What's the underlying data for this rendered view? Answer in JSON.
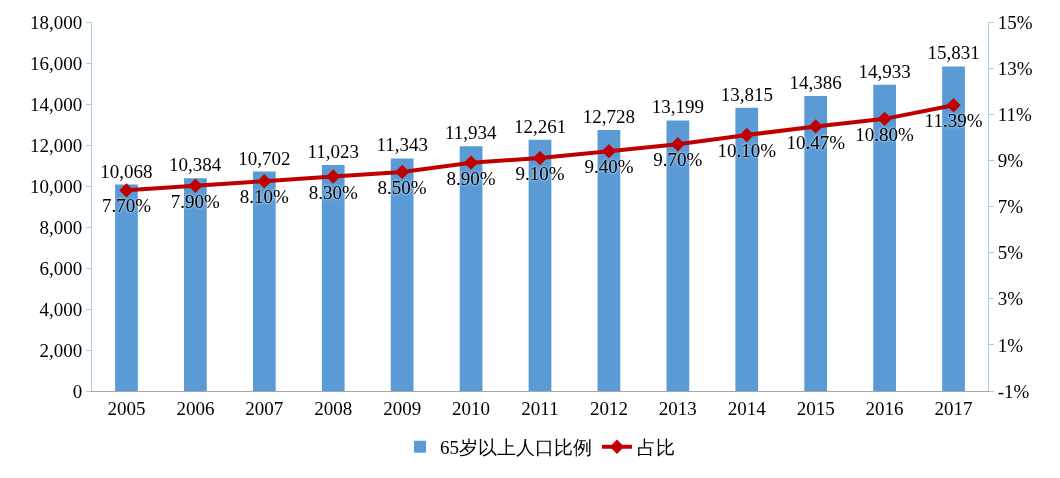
{
  "chart_data": {
    "type": "bar",
    "categories": [
      "2005",
      "2006",
      "2007",
      "2008",
      "2009",
      "2010",
      "2011",
      "2012",
      "2013",
      "2014",
      "2015",
      "2016",
      "2017"
    ],
    "series": [
      {
        "name": "65岁以上人口比例",
        "color": "#5b9bd5",
        "values": [
          10068,
          10384,
          10702,
          11023,
          11343,
          11934,
          12261,
          12728,
          13199,
          13815,
          14386,
          14933,
          15831
        ],
        "value_labels": [
          "10,068",
          "10,384",
          "10,702",
          "11,023",
          "11,343",
          "11,934",
          "12,261",
          "12,728",
          "13,199",
          "13,815",
          "14,386",
          "14,933",
          "15,831"
        ]
      },
      {
        "name": "占比",
        "type": "line",
        "axis": "y2",
        "color": "#c00000",
        "marker": "diamond",
        "line_style": "solid",
        "values": [
          7.7,
          7.9,
          8.1,
          8.3,
          8.5,
          8.9,
          9.1,
          9.4,
          9.7,
          10.1,
          10.47,
          10.8,
          11.39
        ],
        "value_labels": [
          "7.70%",
          "7.90%",
          "8.10%",
          "8.30%",
          "8.50%",
          "8.90%",
          "9.10%",
          "9.40%",
          "9.70%",
          "10.10%",
          "10.47%",
          "10.80%",
          "11.39%"
        ]
      }
    ],
    "ylim": [
      0,
      18000
    ],
    "yticks": [
      0,
      {
        "value": 2000,
        "label": "2,000"
      },
      {
        "value": 4000,
        "label": "4,000"
      },
      {
        "value": 6000,
        "label": "6,000"
      },
      {
        "value": 8000,
        "label": "8,000"
      },
      {
        "value": 10000,
        "label": "10,000"
      },
      {
        "value": 12000,
        "label": "12,000"
      },
      {
        "value": 14000,
        "label": "14,000"
      },
      {
        "value": 16000,
        "label": "16,000"
      },
      {
        "value": 18000,
        "label": "18,000"
      }
    ],
    "y2lim": [
      -1,
      15
    ],
    "y2ticks": [
      {
        "value": -1,
        "label": "-1%"
      },
      {
        "value": 1,
        "label": "1%"
      },
      {
        "value": 3,
        "label": "3%"
      },
      {
        "value": 5,
        "label": "5%"
      },
      {
        "value": 7,
        "label": "7%"
      },
      {
        "value": 9,
        "label": "9%"
      },
      {
        "value": 11,
        "label": "11%"
      },
      {
        "value": 13,
        "label": "13%"
      },
      {
        "value": 15,
        "label": "15%"
      }
    ],
    "grid": false,
    "legend": "bottom"
  }
}
